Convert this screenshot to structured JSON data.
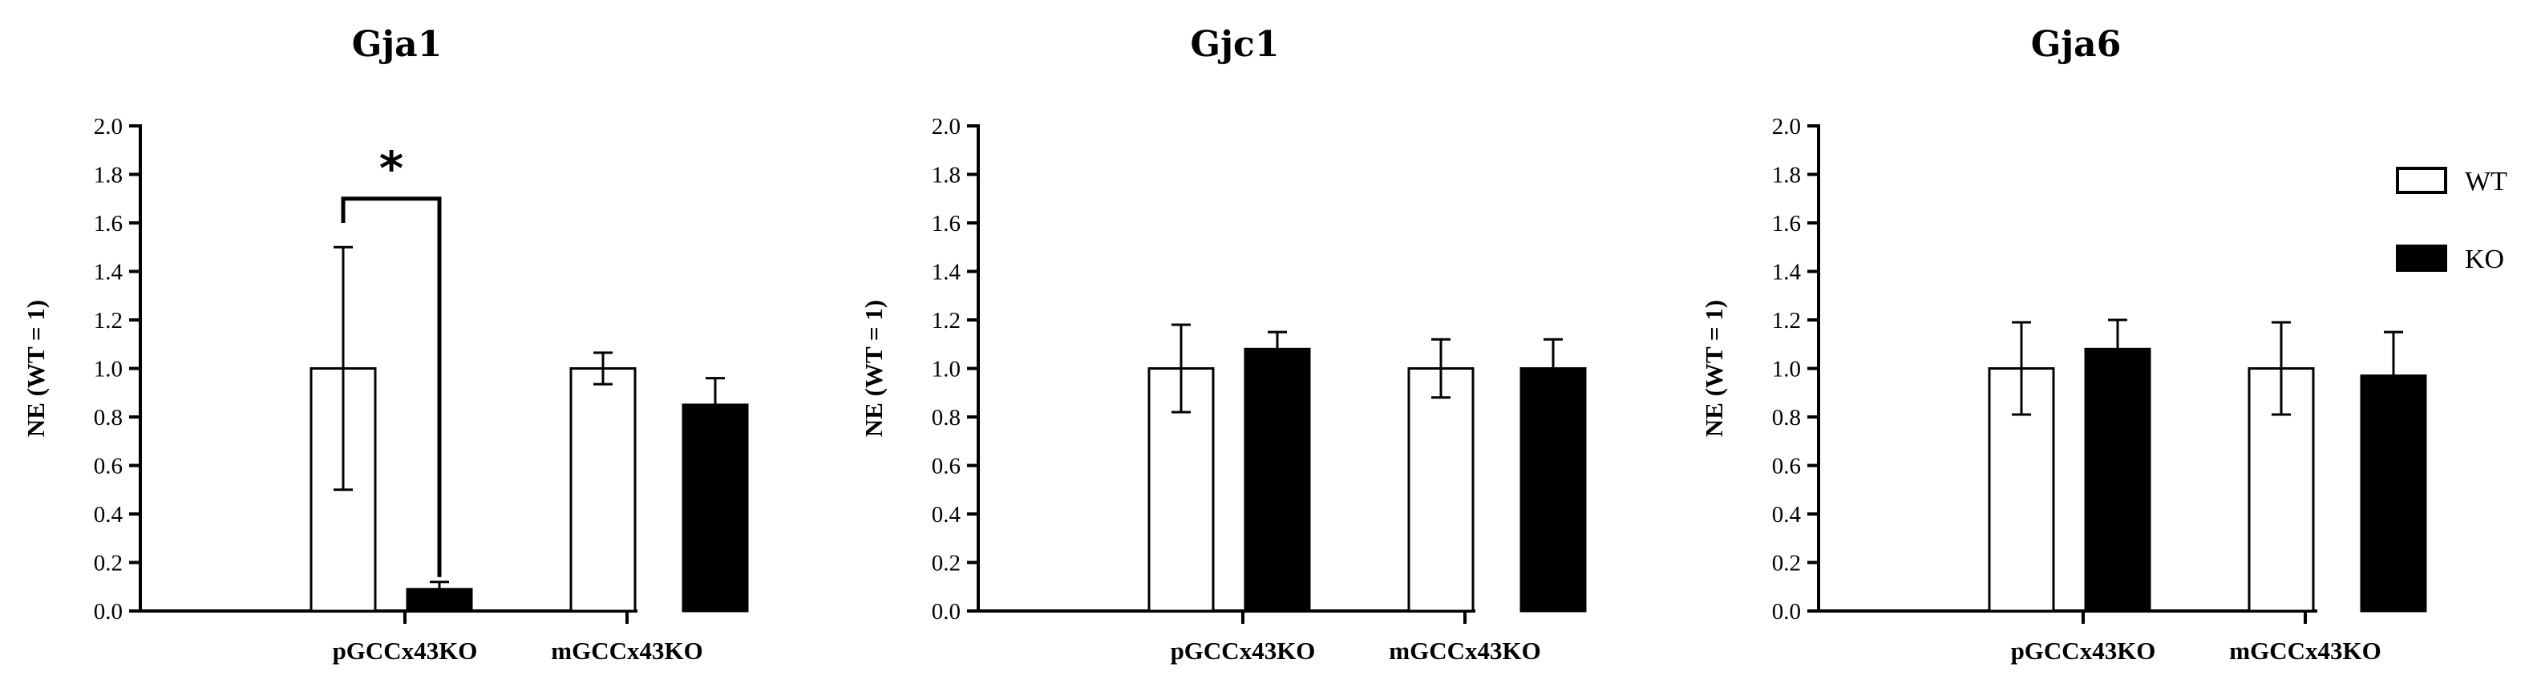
{
  "chart_data": [
    {
      "type": "bar",
      "title": "Gja1",
      "ylabel": "NE (WT = 1)",
      "xlabel": "",
      "categories": [
        "pGCCx43KO",
        "mGCCx43KO"
      ],
      "ylim": [
        0,
        2.0
      ],
      "yticks": [
        "0.0",
        "0.2",
        "0.4",
        "0.6",
        "0.8",
        "1.0",
        "1.2",
        "1.4",
        "1.6",
        "1.8",
        "2.0"
      ],
      "series": [
        {
          "name": "WT",
          "values": [
            1.0,
            1.0
          ],
          "errors": [
            0.5,
            0.065
          ]
        },
        {
          "name": "KO",
          "values": [
            0.09,
            0.85
          ],
          "errors": [
            0.03,
            0.11
          ]
        }
      ],
      "significance": [
        {
          "label": "*",
          "category_index": 0
        }
      ]
    },
    {
      "type": "bar",
      "title": "Gjc1",
      "ylabel": "NE (WT = 1)",
      "xlabel": "",
      "categories": [
        "pGCCx43KO",
        "mGCCx43KO"
      ],
      "ylim": [
        0,
        2.0
      ],
      "yticks": [
        "0.0",
        "0.2",
        "0.4",
        "0.6",
        "0.8",
        "1.0",
        "1.2",
        "1.4",
        "1.6",
        "1.8",
        "2.0"
      ],
      "series": [
        {
          "name": "WT",
          "values": [
            1.0,
            1.0
          ],
          "errors": [
            0.18,
            0.12
          ]
        },
        {
          "name": "KO",
          "values": [
            1.08,
            1.0
          ],
          "errors": [
            0.07,
            0.12
          ]
        }
      ],
      "significance": []
    },
    {
      "type": "bar",
      "title": "Gja6",
      "ylabel": "NE (WT = 1)",
      "xlabel": "",
      "categories": [
        "pGCCx43KO",
        "mGCCx43KO"
      ],
      "ylim": [
        0,
        2.0
      ],
      "yticks": [
        "0.0",
        "0.2",
        "0.4",
        "0.6",
        "0.8",
        "1.0",
        "1.2",
        "1.4",
        "1.6",
        "1.8",
        "2.0"
      ],
      "series": [
        {
          "name": "WT",
          "values": [
            1.0,
            1.0
          ],
          "errors": [
            0.19,
            0.19
          ]
        },
        {
          "name": "KO",
          "values": [
            1.08,
            0.97
          ],
          "errors": [
            0.12,
            0.18
          ]
        }
      ],
      "significance": []
    }
  ],
  "legend": {
    "placement": "top-right",
    "items": [
      {
        "label": "WT",
        "fill": "#ffffff",
        "stroke": "#000000"
      },
      {
        "label": "KO",
        "fill": "#000000",
        "stroke": "#000000"
      }
    ]
  },
  "colors": {
    "wt_fill": "#ffffff",
    "ko_fill": "#000000",
    "axis": "#000000"
  }
}
